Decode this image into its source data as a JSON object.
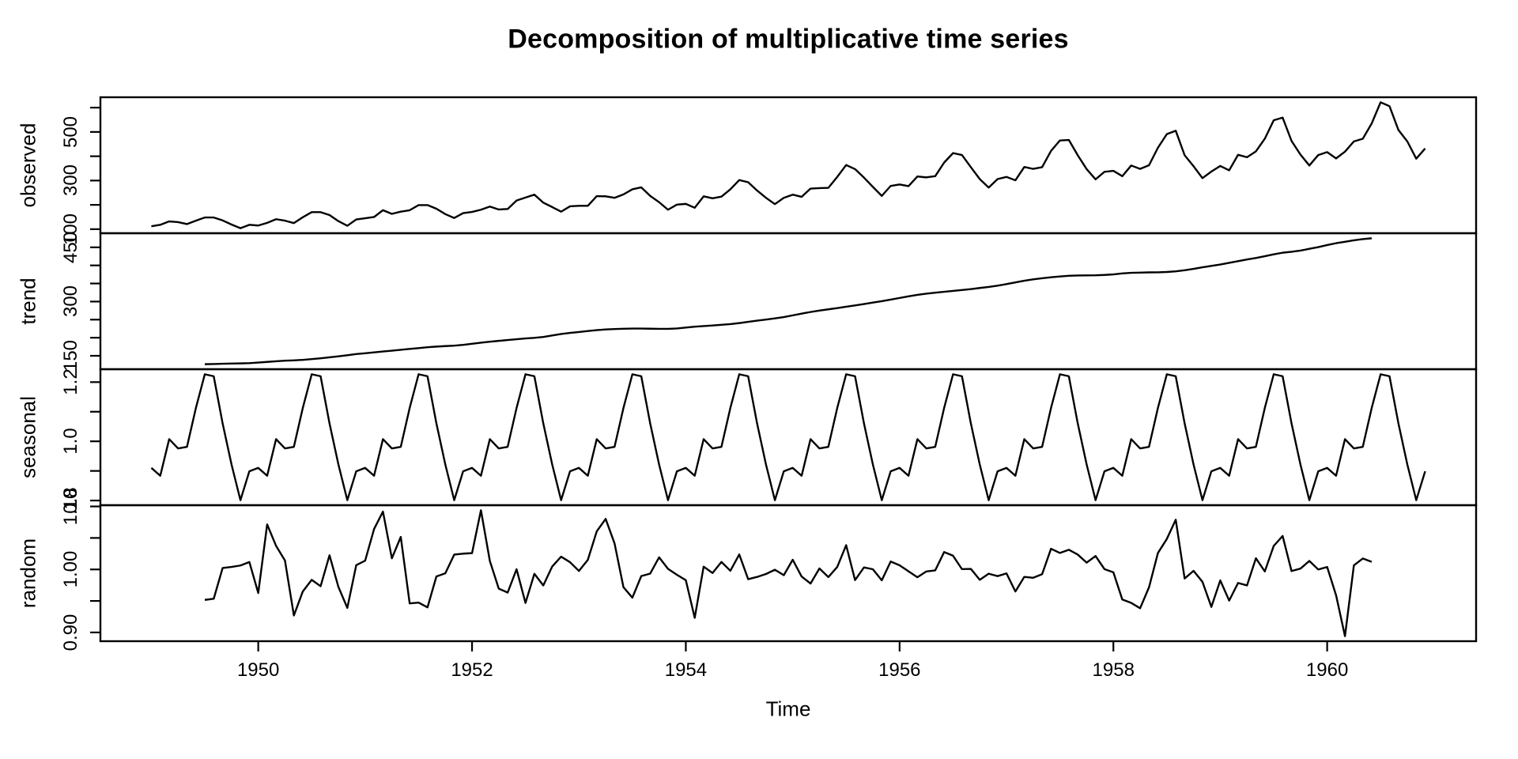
{
  "title": "Decomposition of multiplicative time series",
  "colors": {
    "line": "#000000",
    "background": "#ffffff"
  },
  "chart_data": {
    "type": "line",
    "title": "Decomposition of multiplicative time series",
    "xlabel": "Time",
    "legend": "none",
    "grid": false,
    "x_start_year": 1949,
    "frequency": 12,
    "x_ticks": [
      1950,
      1952,
      1954,
      1956,
      1958,
      1960
    ],
    "x_tick_labels": [
      "1950",
      "1952",
      "1954",
      "1956",
      "1958",
      "1960"
    ],
    "x_range_data": [
      1949.0,
      1960.9167
    ],
    "panels": [
      {
        "id": "observed",
        "label": "observed",
        "y_ticks": [
          100,
          200,
          300,
          400,
          500,
          600
        ],
        "y_tick_labels": [
          "100",
          "",
          "300",
          "",
          "500",
          ""
        ],
        "ylim_data": [
          104,
          622
        ]
      },
      {
        "id": "trend",
        "label": "trend",
        "y_ticks": [
          150,
          200,
          250,
          300,
          350,
          400,
          450
        ],
        "y_tick_labels": [
          "150",
          "",
          "",
          "300",
          "",
          "",
          "450"
        ],
        "ylim_data": [
          126.7917,
          475.0417
        ]
      },
      {
        "id": "seasonal",
        "label": "seasonal",
        "y_ticks": [
          0.8,
          0.9,
          1.0,
          1.1,
          1.2
        ],
        "y_tick_labels": [
          "0.8",
          "",
          "1.0",
          "",
          "1.2"
        ],
        "ylim_data": [
          0.8011781,
          1.2265555
        ]
      },
      {
        "id": "random",
        "label": "random",
        "y_ticks": [
          0.9,
          0.95,
          1.0,
          1.05,
          1.1
        ],
        "y_tick_labels": [
          "0.90",
          "",
          "1.00",
          "",
          "1.10"
        ],
        "ylim_data": [
          0.889,
          1.098
        ]
      }
    ],
    "observed": [
      112,
      118,
      132,
      129,
      121,
      135,
      148,
      148,
      136,
      119,
      104,
      118,
      115,
      126,
      141,
      135,
      125,
      149,
      170,
      170,
      158,
      133,
      114,
      140,
      145,
      150,
      178,
      163,
      172,
      178,
      199,
      199,
      184,
      162,
      146,
      166,
      171,
      180,
      193,
      181,
      183,
      218,
      230,
      242,
      209,
      191,
      172,
      194,
      196,
      196,
      236,
      235,
      229,
      243,
      264,
      272,
      237,
      211,
      180,
      201,
      204,
      188,
      235,
      227,
      234,
      264,
      302,
      293,
      259,
      229,
      203,
      229,
      242,
      233,
      267,
      269,
      270,
      315,
      364,
      347,
      312,
      274,
      237,
      278,
      284,
      277,
      317,
      313,
      318,
      374,
      413,
      405,
      355,
      306,
      271,
      306,
      315,
      301,
      356,
      348,
      355,
      422,
      465,
      467,
      404,
      347,
      305,
      336,
      340,
      318,
      362,
      348,
      363,
      435,
      491,
      505,
      404,
      359,
      310,
      337,
      360,
      342,
      406,
      396,
      420,
      472,
      548,
      559,
      463,
      407,
      362,
      405,
      417,
      391,
      419,
      461,
      472,
      535,
      622,
      606,
      508,
      461,
      390,
      432
    ],
    "seasonal_figure": [
      0.9102304,
      0.8836253,
      1.0073663,
      0.975906,
      0.981378,
      1.1127758,
      1.2265555,
      1.219911,
      1.0604919,
      0.9217572,
      0.8011781,
      0.8988244
    ],
    "series_derivation": {
      "trend": "centered 12-month moving average of observed (defined Jul 1949 - Jun 1960)",
      "seasonal": "seasonal_figure repeated each year",
      "random": "observed / (trend * seasonal)"
    }
  }
}
